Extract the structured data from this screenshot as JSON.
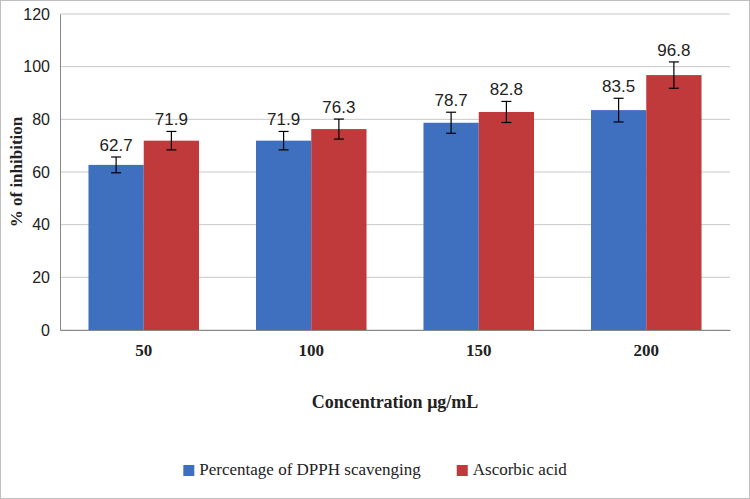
{
  "chart_data": {
    "type": "bar",
    "x_label": "Concentration μg/mL",
    "y_label": "% of inhibition",
    "categories": [
      "50",
      "100",
      "150",
      "200"
    ],
    "series": [
      {
        "name": "Percentage of DPPH scavenging",
        "color": "#3f6fbf",
        "values": [
          62.7,
          71.9,
          78.7,
          83.5
        ],
        "errors": [
          3,
          3.5,
          4,
          4.5
        ]
      },
      {
        "name": "Ascorbic acid",
        "color": "#c0393b",
        "values": [
          71.9,
          76.3,
          82.8,
          96.8
        ],
        "errors": [
          3.5,
          3.8,
          4,
          5
        ]
      }
    ],
    "ylim": [
      0,
      120
    ],
    "yticks": [
      0,
      20,
      40,
      60,
      80,
      100,
      120
    ],
    "grid": true,
    "data_labels": true,
    "legend": "bottom"
  }
}
